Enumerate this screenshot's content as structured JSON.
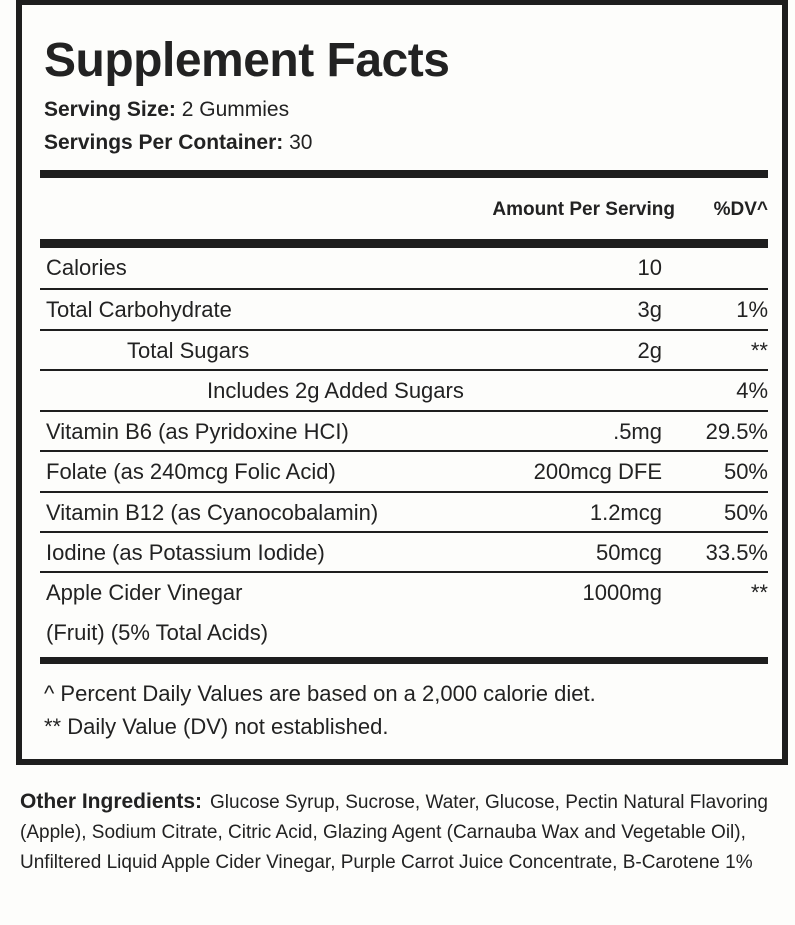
{
  "title": "Supplement Facts",
  "serving_size": {
    "label": "Serving Size:",
    "value": "2 Gummies"
  },
  "servings_per_container": {
    "label": "Servings Per Container:",
    "value": "30"
  },
  "header": {
    "amount": "Amount Per Serving",
    "dv": "%DV^"
  },
  "rows": [
    {
      "name": "Calories",
      "amount": "10",
      "dv": ""
    },
    {
      "name": "Total Carbohydrate",
      "amount": "3g",
      "dv": "1%"
    },
    {
      "name": "Total Sugars",
      "amount": "2g",
      "dv": "**"
    },
    {
      "name": "Includes 2g Added Sugars",
      "amount": "",
      "dv": "4%"
    },
    {
      "name": "Vitamin B6 (as Pyridoxine HCI)",
      "amount": ".5mg",
      "dv": "29.5%"
    },
    {
      "name": "Folate (as 240mcg Folic Acid)",
      "amount": "200mcg DFE",
      "dv": "50%"
    },
    {
      "name": "Vitamin B12 (as Cyanocobalamin)",
      "amount": "1.2mcg",
      "dv": "50%"
    },
    {
      "name": "Iodine (as Potassium Iodide)",
      "amount": "50mcg",
      "dv": "33.5%"
    },
    {
      "name": "Apple Cider Vinegar",
      "name_line2": "(Fruit) (5% Total Acids)",
      "amount": "1000mg",
      "dv": "**"
    }
  ],
  "footnotes": [
    "^ Percent Daily Values are based on a 2,000 calorie diet.",
    "** Daily Value (DV) not established."
  ],
  "other_ingredients": {
    "label": "Other Ingredients:",
    "text": "Glucose Syrup, Sucrose, Water, Glucose, Pectin Natural Flavoring (Apple), Sodium Citrate, Citric Acid, Glazing Agent (Carnauba Wax and Vegetable Oil), Unfiltered Liquid Apple Cider Vinegar, Purple Carrot Juice Concentrate, B-Carotene 1%"
  }
}
